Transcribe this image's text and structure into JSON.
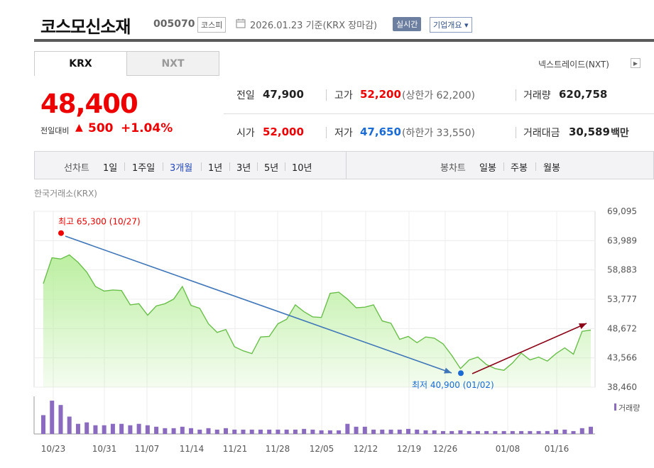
{
  "header": {
    "company_name": "코스모신소재",
    "code": "005070",
    "market": "코스피",
    "date_text": "2026.01.23  기준(KRX 장마감)",
    "realtime_label": "실시간",
    "overview_label": "기업개요 ▾",
    "calendar_icon": "calendar-icon"
  },
  "tabs": {
    "krx": "KRX",
    "nxt": "NXT",
    "nxt_rate_link": "넥스트레이드(NXT)",
    "nxt_rate_arrow": "▶"
  },
  "price": {
    "current": "48,400",
    "change_label": "전일대비",
    "change_arrow": "▲",
    "change_value": "500",
    "change_rate": "+1.04%",
    "up_color": "#e00000",
    "down_color": "#1a6bd6"
  },
  "quote": {
    "prev_close_label": "전일",
    "prev_close": "47,900",
    "high_label": "고가",
    "high": "52,200",
    "upper_limit": "(상한가 62,200)",
    "volume_label": "거래량",
    "volume": "620,758",
    "open_label": "시가",
    "open": "52,000",
    "low_label": "저가",
    "low": "47,650",
    "lower_limit": "(하한가 33,550)",
    "value_label": "거래대금",
    "value": "30,589",
    "value_unit": "백만"
  },
  "period_bar": {
    "line_chart_label": "선차트",
    "periods": [
      "1일",
      "1주일",
      "3개월",
      "1년",
      "3년",
      "5년",
      "10년"
    ],
    "active_period": "3개월",
    "candle_chart_label": "봉차트",
    "candles": [
      "일봉",
      "주봉",
      "월봉"
    ]
  },
  "chart_data": {
    "type": "area",
    "exchange_label": "한국거래소(KRX)",
    "y_ticks": [
      "69,095",
      "63,989",
      "58,883",
      "53,777",
      "48,672",
      "43,566",
      "38,460"
    ],
    "ylim": [
      38460,
      69095
    ],
    "x_ticks": [
      "10/23",
      "10/31",
      "11/07",
      "11/14",
      "11/21",
      "11/28",
      "12/05",
      "12/12",
      "12/19",
      "12/26",
      "01/08",
      "01/16"
    ],
    "high_annotation": "최고 65,300 (10/27)",
    "low_annotation": "최저 40,900 (01/02)",
    "volume_legend": "거래량",
    "line_color": "#6abf4b",
    "fill_color": "#b8ee9c",
    "volume_color": "#8a6bbf",
    "trend_down_color": "#3f76b8",
    "trend_up_color": "#8b0016",
    "prices": [
      56500,
      61000,
      60800,
      61500,
      60200,
      58500,
      56000,
      55200,
      55400,
      55300,
      52800,
      53000,
      51000,
      52600,
      53000,
      53800,
      56000,
      52700,
      52200,
      49500,
      48000,
      48500,
      45500,
      44800,
      44300,
      47200,
      47300,
      49500,
      50300,
      52800,
      51600,
      50700,
      50600,
      54800,
      55000,
      53800,
      52300,
      52400,
      52800,
      50000,
      49600,
      46800,
      47300,
      46200,
      47200,
      47000,
      46000,
      44000,
      41700,
      43200,
      43700,
      42400,
      41700,
      41400,
      42700,
      44400,
      43200,
      43700,
      43000,
      44300,
      45300,
      44200,
      48200,
      48400
    ],
    "volumes": [
      1.3,
      2.3,
      2.0,
      1.2,
      0.7,
      0.8,
      0.6,
      0.6,
      0.7,
      0.7,
      0.6,
      0.7,
      0.6,
      0.5,
      0.4,
      0.4,
      0.5,
      0.4,
      0.3,
      0.4,
      0.3,
      0.4,
      0.3,
      0.3,
      0.3,
      0.3,
      0.3,
      0.3,
      0.3,
      0.3,
      0.35,
      0.3,
      0.25,
      0.25,
      0.25,
      0.7,
      0.5,
      0.5,
      0.3,
      0.3,
      0.3,
      0.3,
      0.35,
      0.3,
      0.25,
      0.25,
      0.2,
      0.2,
      0.25,
      0.2,
      0.2,
      0.2,
      0.2,
      0.2,
      0.2,
      0.2,
      0.2,
      0.2,
      0.2,
      0.3,
      0.3,
      0.2,
      0.4,
      0.5
    ]
  }
}
